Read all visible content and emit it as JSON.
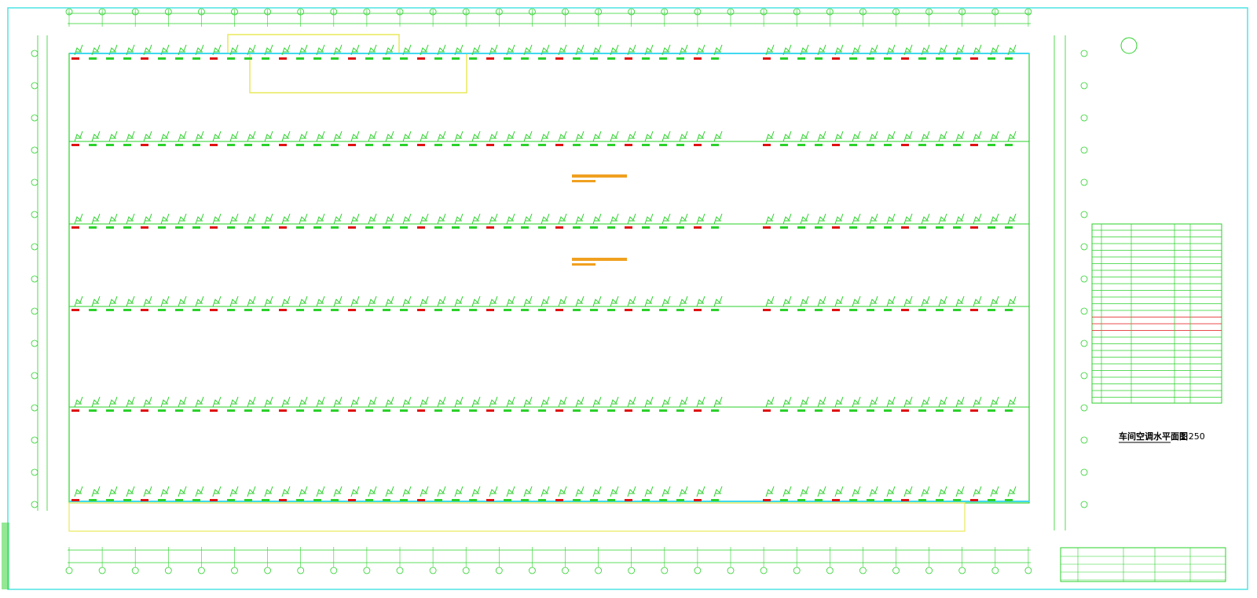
{
  "drawing": {
    "title": "车间空调水平面图",
    "scale": "1:250"
  }
}
